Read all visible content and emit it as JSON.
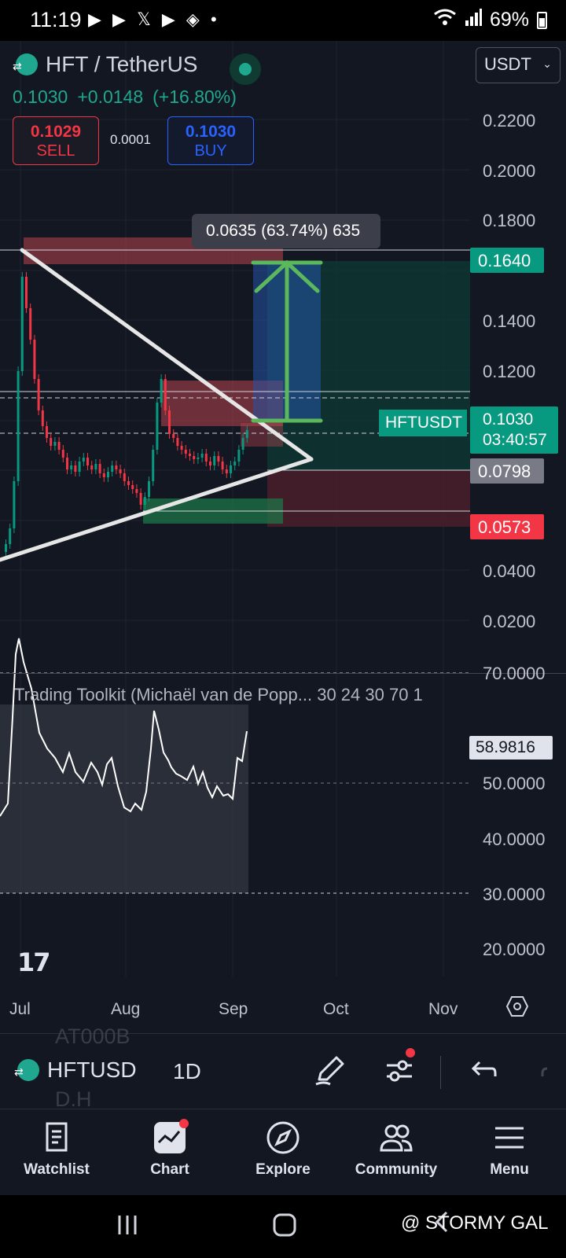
{
  "status_bar": {
    "time": "11:19",
    "app_icons": "▶ ▶ 𝕏 ▶ ◈ •",
    "signal": "📶",
    "battery": "69%"
  },
  "header": {
    "symbol": "HFT / TetherUS",
    "currency_select": "USDT",
    "last_price": "0.1030",
    "change": "+0.0148",
    "change_pct": "(+16.80%)",
    "sell_price": "0.1029",
    "sell_label": "SELL",
    "spread": "0.0001",
    "buy_price": "0.1030",
    "buy_label": "BUY"
  },
  "price_axis": {
    "labels": [
      "0.2200",
      "0.2000",
      "0.1800",
      "0.1400",
      "0.1200",
      "0.0400",
      "0.0200"
    ],
    "target_tag": "0.1640",
    "current_tag_price": "0.1030",
    "current_tag_timer": "03:40:57",
    "symbol_tag": "HFTUSDT",
    "entry_tag": "0.0798",
    "stop_tag": "0.0573"
  },
  "measure_tooltip": "0.0635 (63.74%) 635",
  "indicator": {
    "title": "Trading Toolkit (Michaël van de Popp... 30 24 30 70 1",
    "value_tag": "58.9816",
    "axis_labels": [
      "70.0000",
      "50.0000",
      "40.0000",
      "30.0000",
      "20.0000"
    ]
  },
  "time_axis": [
    "Jul",
    "Aug",
    "Sep",
    "Oct",
    "Nov"
  ],
  "tv_logo": "17",
  "toolbar": {
    "ghost_top": "AT000B",
    "ghost_bottom": "D.H",
    "symbol": "HFTUSD",
    "interval": "1D"
  },
  "bottom_nav": [
    {
      "label": "Watchlist",
      "icon": "document-icon"
    },
    {
      "label": "Chart",
      "icon": "chart-icon"
    },
    {
      "label": "Explore",
      "icon": "compass-icon"
    },
    {
      "label": "Community",
      "icon": "people-icon"
    },
    {
      "label": "Menu",
      "icon": "hamburger-icon"
    }
  ],
  "watermark": "@ STORMY GAL",
  "colors": {
    "background": "#131722",
    "up": "#089981",
    "down": "#f23645",
    "accent_blue": "#2962ff"
  }
}
